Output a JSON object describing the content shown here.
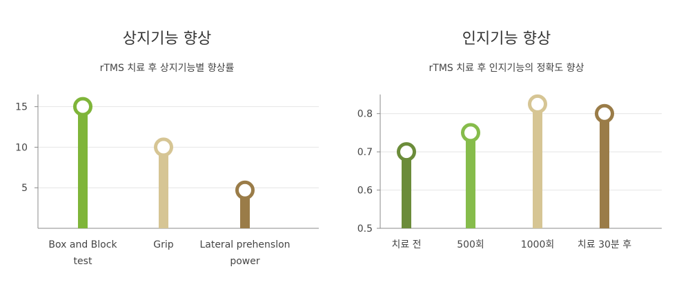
{
  "chart_data": [
    {
      "type": "lollipop",
      "title": "상지기능 향상",
      "subtitle": "rTMS 치료 후 상지기능별 향상률",
      "categories": [
        [
          "Box and Block",
          "test"
        ],
        [
          "Grip"
        ],
        [
          "Lateral prehenslon",
          "power"
        ]
      ],
      "values": [
        15,
        10,
        4.7
      ],
      "colors": [
        "#7fb539",
        "#d6c594",
        "#9a7c48"
      ],
      "yticks": [
        "5",
        "10",
        "15"
      ],
      "ytick_values": [
        5,
        10,
        15
      ],
      "ylim": [
        0,
        16.5
      ],
      "grid": true
    },
    {
      "type": "lollipop",
      "title": "인지기능 향상",
      "subtitle": "rTMS 치료 후 인지기능의 정확도 향상",
      "categories": [
        [
          "치료 전"
        ],
        [
          "500회"
        ],
        [
          "1000회"
        ],
        [
          "치료 30분 후"
        ]
      ],
      "values": [
        0.7,
        0.75,
        0.825,
        0.8
      ],
      "colors": [
        "#6b8c3a",
        "#86bc4b",
        "#d6c594",
        "#9a7c48"
      ],
      "yticks": [
        "0.5",
        "0.6",
        "0.7",
        "0.8"
      ],
      "ytick_values": [
        0.5,
        0.6,
        0.7,
        0.8
      ],
      "ylim": [
        0.5,
        0.85
      ],
      "grid": true
    }
  ]
}
